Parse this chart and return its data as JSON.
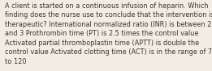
{
  "lines": [
    "A client is started on a continuous infusion of heparin. Which",
    "finding does the nurse use to conclude that the intervention is",
    "therapeutic? International normalized ratio (INR) is between 2",
    "and 3 Prothrombin time (PT) is 2.5 times the control value",
    "Activated partial thromboplastin time (APTT) is double the",
    "control value Activated clotting time (ACT) is in the range of 70",
    "to 120"
  ],
  "background_color": "#f2ede3",
  "text_color": "#3a3530",
  "font_size": 5.85,
  "fig_width": 2.61,
  "fig_height": 0.88,
  "dpi": 100
}
